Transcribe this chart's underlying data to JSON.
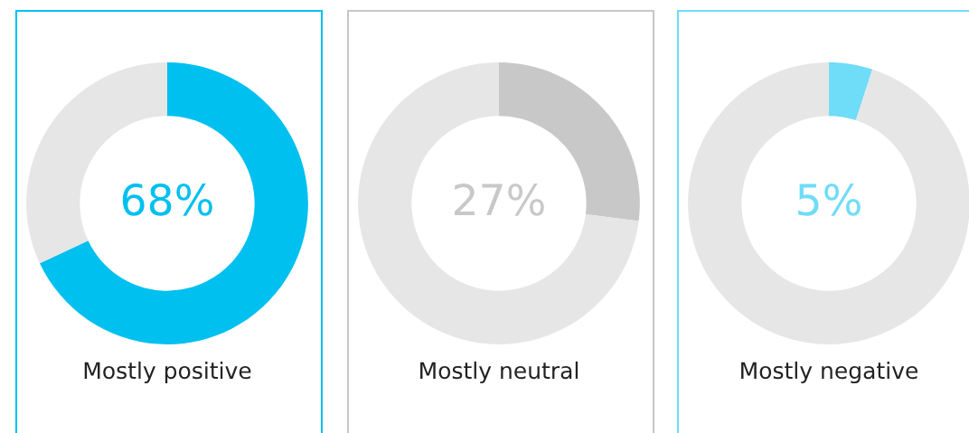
{
  "chart_data": [
    {
      "type": "donut",
      "title": "Mostly positive",
      "categories": [
        null,
        null
      ],
      "values": [
        68,
        32
      ],
      "colors": [
        "#00c0f0",
        "#e6e6e6"
      ],
      "value_labels": [
        "68%",
        null
      ]
    },
    {
      "type": "donut",
      "title": "Mostly neutral",
      "categories": [
        null,
        null
      ],
      "values": [
        27,
        73
      ],
      "colors": [
        "#c8c8c8",
        "#e6e6e6"
      ],
      "value_labels": [
        "27%",
        null
      ]
    },
    {
      "type": "donut",
      "title": "Mostly negative",
      "categories": [
        null,
        null
      ],
      "values": [
        5,
        95
      ],
      "colors": [
        "#6fdcf8",
        "#e6e6e6"
      ],
      "value_labels": [
        "5%",
        null
      ]
    }
  ]
}
